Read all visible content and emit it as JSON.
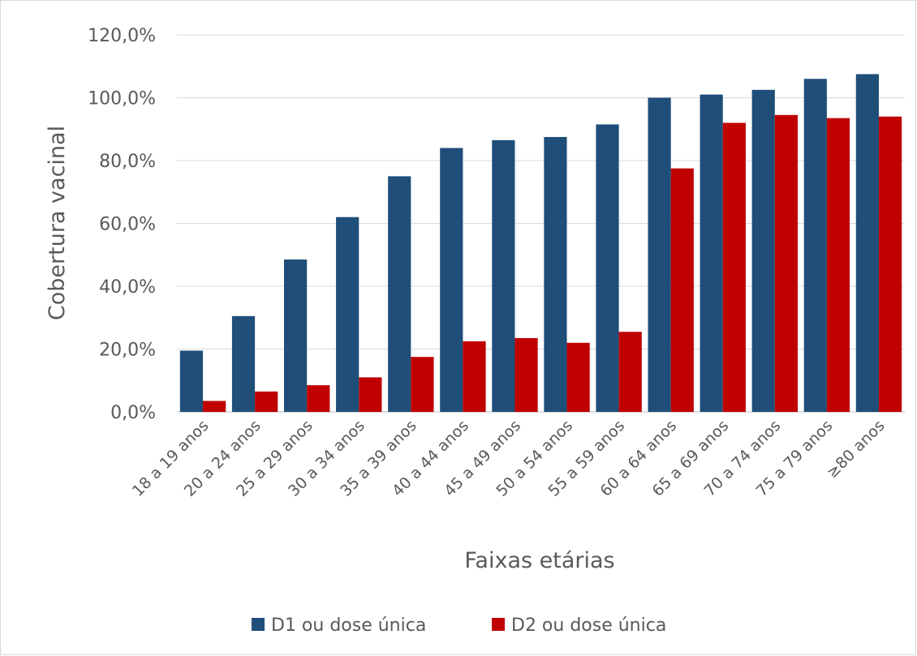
{
  "chart_data": {
    "type": "bar",
    "title": "",
    "xlabel": "Faixas etárias",
    "ylabel": "Cobertura vacinal",
    "categories": [
      "18 a 19 anos",
      "20 a 24 anos",
      "25 a 29 anos",
      "30 a 34 anos",
      "35 a 39 anos",
      "40 a 44 anos",
      "45 a 49 anos",
      "50 a 54 anos",
      "55 a 59 anos",
      "60 a 64 anos",
      "65 a 69 anos",
      "70 a 74 anos",
      "75 a 79 anos",
      "≥80 anos"
    ],
    "series": [
      {
        "name": "D1 ou dose única",
        "color": "#1f4e79",
        "values": [
          19.5,
          30.5,
          48.5,
          62.0,
          75.0,
          84.0,
          86.5,
          87.5,
          91.5,
          100.0,
          101.0,
          102.5,
          106.0,
          107.5
        ]
      },
      {
        "name": "D2 ou dose única",
        "color": "#c00000",
        "values": [
          3.5,
          6.5,
          8.5,
          11.0,
          17.5,
          22.5,
          23.5,
          22.0,
          25.5,
          77.5,
          92.0,
          94.5,
          93.5,
          94.0
        ]
      }
    ],
    "ylim": [
      0,
      120
    ],
    "yticks": [
      "0,0%",
      "20,0%",
      "40,0%",
      "60,0%",
      "80,0%",
      "100,0%",
      "120,0%"
    ],
    "grid": true,
    "legend_position": "bottom"
  }
}
